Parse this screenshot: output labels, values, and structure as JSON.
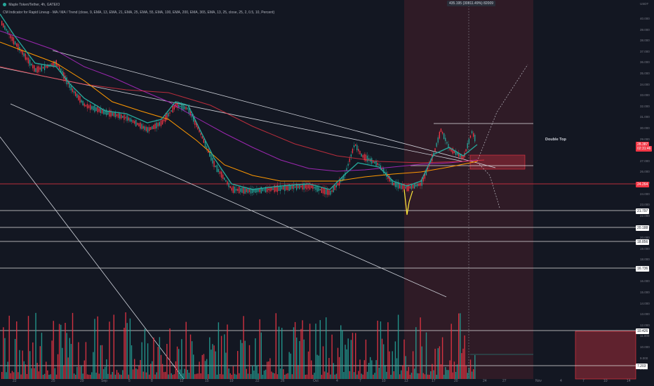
{
  "header": {
    "symbol_line": "Maple Token/Tether, 4h, GATEIO",
    "indicator_line": "CM Indicator for Rapid Lineup - MA / MA / Trend (close, 9, EMA, 13, EMA, 21, EMA, 25, EMA, 55, EMA, 100, EMA, 200, EMA, 365, EMA, 13, 25, close, 25, 2, 0.5, 10, Percent)"
  },
  "axis": {
    "currency": "USDT",
    "y_ticks": [
      "40.000",
      "39.000",
      "38.000",
      "37.000",
      "36.000",
      "35.000",
      "34.000",
      "33.000",
      "32.000",
      "31.000",
      "30.000",
      "29.000",
      "28.000",
      "27.000",
      "26.000",
      "25.000",
      "24.000",
      "23.000",
      "22.000",
      "21.000",
      "20.000",
      "19.000",
      "18.000",
      "17.000",
      "16.000",
      "15.000",
      "14.000",
      "13.000",
      "12.000",
      "11.000",
      "10.000",
      "9.000",
      "8.000"
    ],
    "x_ticks": [
      "22",
      "25",
      "29",
      "Sep",
      "5",
      "8",
      "12",
      "15",
      "19",
      "22",
      "26",
      "Oct",
      "4",
      "7",
      "10",
      "13",
      "17",
      "20",
      "24",
      "27",
      "Nov",
      "4",
      "7",
      "10",
      "14"
    ]
  },
  "price_tags": [
    {
      "label": "28.387",
      "color": "#f23645",
      "kind": "price"
    },
    {
      "label": "02:31:46",
      "color": "#f23645",
      "kind": "countdown"
    },
    {
      "label": "24.264",
      "color": "#f23645",
      "kind": "level"
    },
    {
      "label": "21.797",
      "color": "#ffffff",
      "kind": "level"
    },
    {
      "label": "20.188",
      "color": "#ffffff",
      "kind": "level"
    },
    {
      "label": "18.856",
      "color": "#ffffff",
      "kind": "level"
    },
    {
      "label": "16.736",
      "color": "#ffffff",
      "kind": "level"
    },
    {
      "label": "10.426",
      "color": "#ffffff",
      "kind": "level"
    },
    {
      "label": "7.203",
      "color": "#ffffff",
      "kind": "level"
    }
  ],
  "crosshair_label": "435.195 (30811.49%) 82009",
  "annotation": "Double Top",
  "colors": {
    "bg": "#131722",
    "up": "#26a69a",
    "down": "#f23645",
    "zone": "#f23645",
    "grid": "#1e222d"
  }
}
